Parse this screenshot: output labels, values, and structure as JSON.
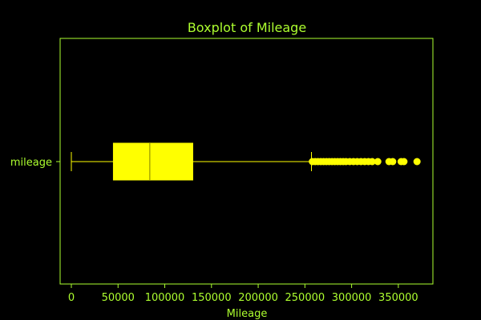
{
  "chart_data": {
    "type": "boxplot",
    "orientation": "horizontal",
    "title": "Boxplot of Mileage",
    "xlabel": "Mileage",
    "ylabel": "",
    "categories": [
      "mileage"
    ],
    "xlim": [
      -12000,
      387000
    ],
    "x_ticks": [
      0,
      50000,
      100000,
      150000,
      200000,
      250000,
      300000,
      350000
    ],
    "x_tick_labels": [
      "0",
      "50000",
      "100000",
      "150000",
      "200000",
      "250000",
      "300000",
      "350000"
    ],
    "grid": false,
    "box": {
      "whisker_low": 0,
      "q1": 45000,
      "median": 84000,
      "q3": 130000,
      "whisker_high": 257000
    },
    "outliers": [
      258000,
      261000,
      264000,
      267000,
      270000,
      273000,
      276000,
      279000,
      282000,
      285000,
      288000,
      291000,
      294000,
      298000,
      302000,
      306000,
      310000,
      314000,
      318000,
      322000,
      328000,
      340000,
      344000,
      353000,
      356000,
      370000
    ],
    "colors": {
      "background": "#000000",
      "axes": "#adff2f",
      "text": "#adff2f",
      "box_fill": "#ffff00",
      "median_line": "#808000",
      "outlier": "#ffff00"
    }
  }
}
